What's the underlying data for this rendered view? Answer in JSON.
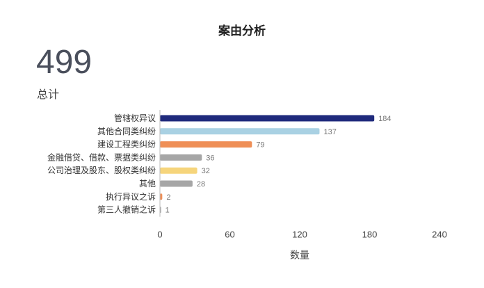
{
  "summary": {
    "total_value": "499",
    "total_label": "总计"
  },
  "chart_data": {
    "type": "bar",
    "orientation": "horizontal",
    "title": "案由分析",
    "xlabel": "数量",
    "ylabel": "",
    "xlim": [
      0,
      240
    ],
    "xticks": [
      0,
      60,
      120,
      180,
      240
    ],
    "grid": false,
    "categories": [
      "管辖权异议",
      "其他合同类纠纷",
      "建设工程类纠纷",
      "金融借贷、借款、票据类纠纷",
      "公司治理及股东、股权类纠纷",
      "其他",
      "执行异议之诉",
      "第三人撤销之诉"
    ],
    "values": [
      184,
      137,
      79,
      36,
      32,
      28,
      2,
      1
    ],
    "colors": [
      "#1f2a7c",
      "#a9d1e3",
      "#ef8f57",
      "#a6a6a6",
      "#f6d57c",
      "#a6a6a6",
      "#ef8f57",
      "#a6a6a6"
    ]
  }
}
